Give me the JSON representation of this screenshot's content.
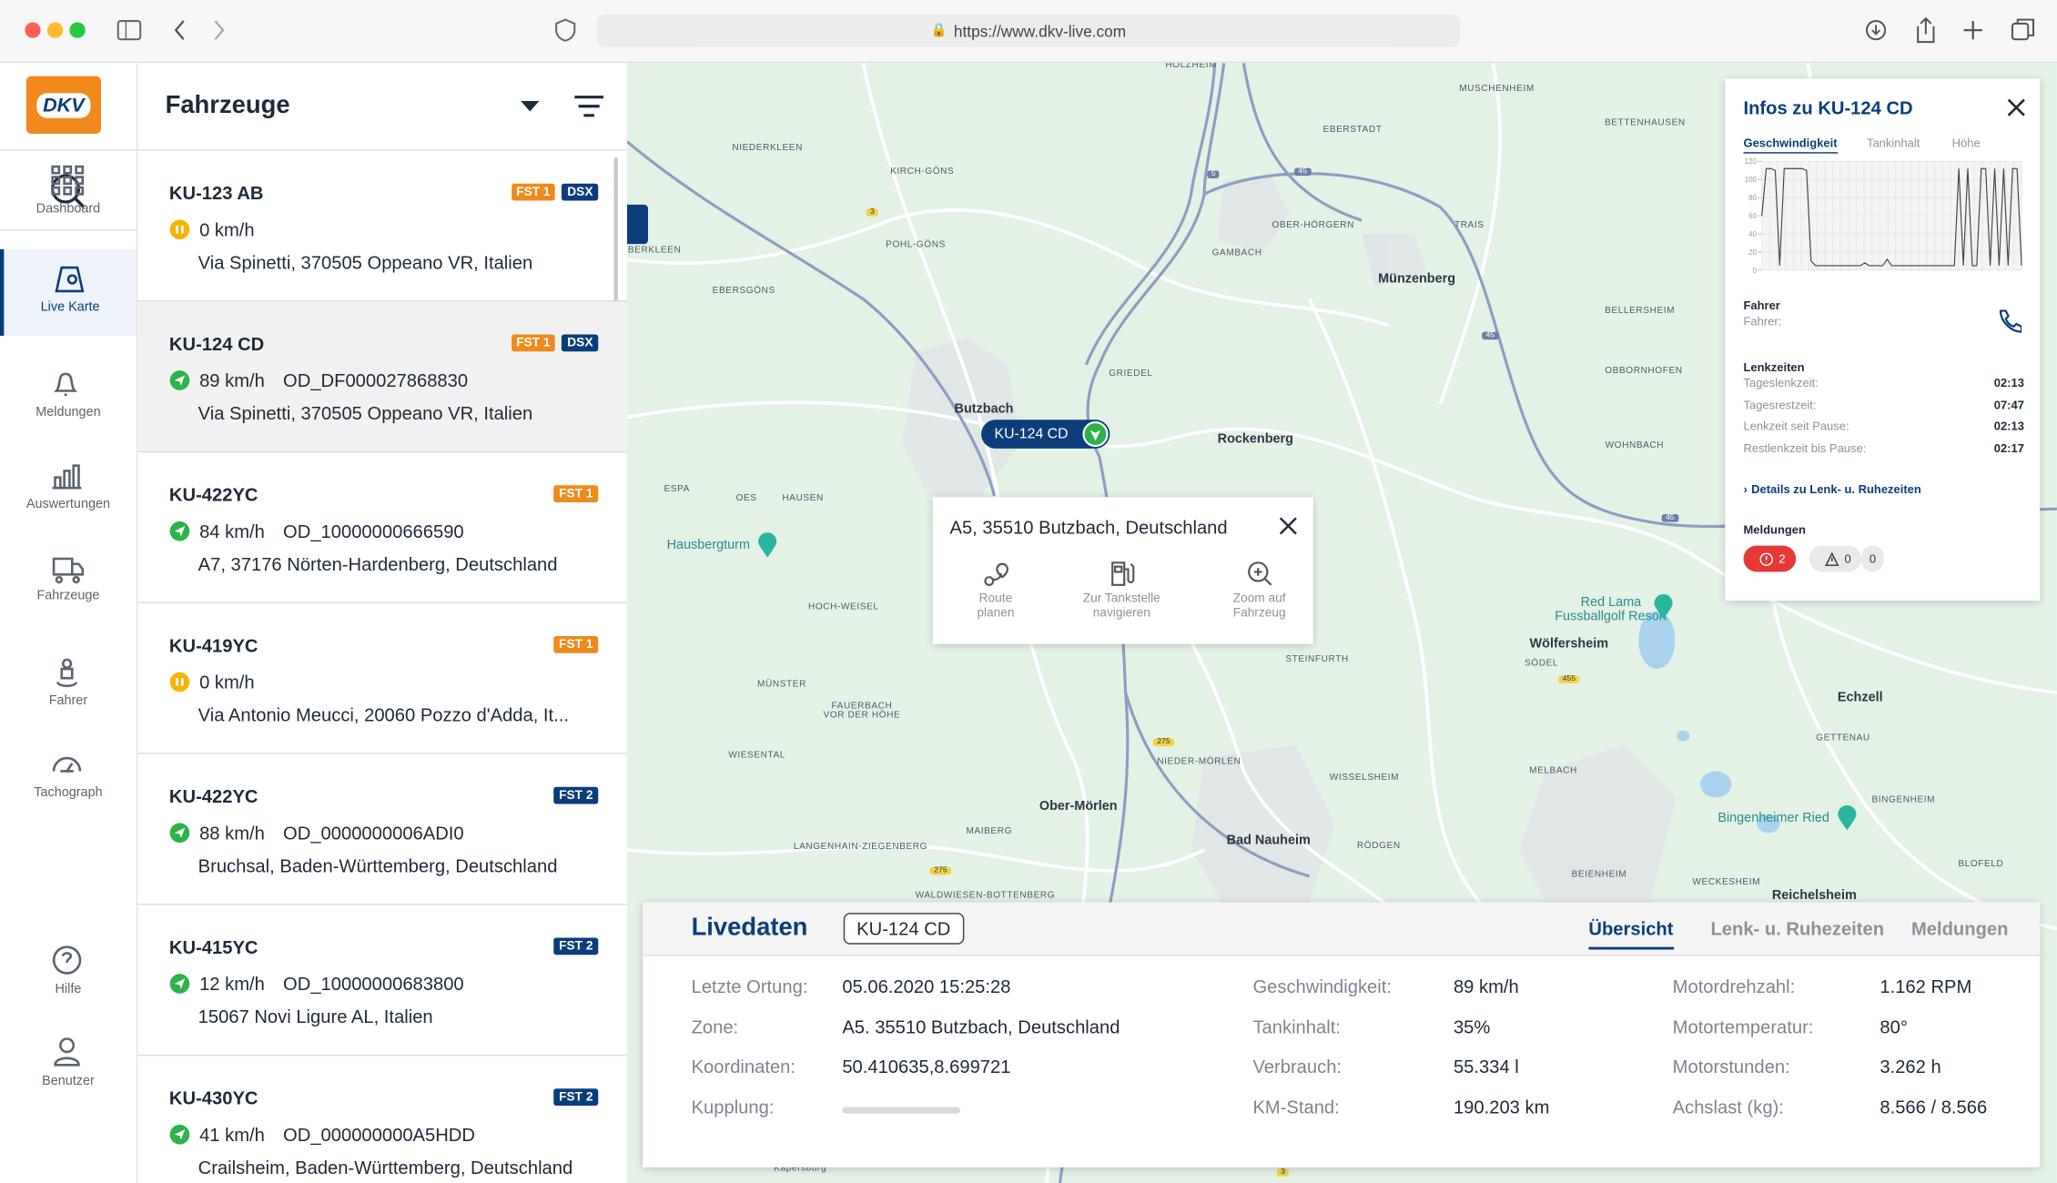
{
  "browser": {
    "url": "https://www.dkv-live.com"
  },
  "sidebar": {
    "logo": "DKV",
    "nav": [
      {
        "label": "Dashboard"
      },
      {
        "label": "Live Karte",
        "active": true
      },
      {
        "label": "Meldungen"
      },
      {
        "label": "Auswertungen"
      },
      {
        "label": "Fahrzeuge"
      },
      {
        "label": "Fahrer"
      },
      {
        "label": "Tachograph"
      },
      {
        "label": "Hilfe"
      },
      {
        "label": "Benutzer"
      }
    ]
  },
  "vehicle_list": {
    "title": "Fahrzeuge",
    "vehicles": [
      {
        "plate": "KU-123 AB",
        "badges": [
          {
            "text": "FST 1",
            "color": "#f08a1c"
          },
          {
            "text": "DSX",
            "color": "#0b3d7a"
          }
        ],
        "status": "paused",
        "speed": "0 km/h",
        "address": "Via Spinetti, 370505 Oppeano VR, Italien"
      },
      {
        "plate": "KU-124 CD",
        "badges": [
          {
            "text": "FST 1",
            "color": "#f08a1c"
          },
          {
            "text": "DSX",
            "color": "#0b3d7a"
          }
        ],
        "status": "moving",
        "speed": "89 km/h",
        "id": "OD_DF000027868830",
        "address": "Via Spinetti, 370505 Oppeano VR, Italien",
        "selected": true
      },
      {
        "plate": "KU-422YC",
        "badges": [
          {
            "text": "FST 1",
            "color": "#f08a1c"
          }
        ],
        "status": "moving",
        "speed": "84 km/h",
        "id": "OD_10000000666590",
        "address": "A7, 37176 Nörten-Hardenberg, Deutschland"
      },
      {
        "plate": "KU-419YC",
        "badges": [
          {
            "text": "FST 1",
            "color": "#f08a1c"
          }
        ],
        "status": "paused",
        "speed": "0 km/h",
        "address": "Via Antonio Meucci, 20060 Pozzo d'Adda, It..."
      },
      {
        "plate": "KU-422YC",
        "badges": [
          {
            "text": "FST 2",
            "color": "#0b3d7a"
          }
        ],
        "status": "moving",
        "speed": "88 km/h",
        "id": "OD_0000000006ADI0",
        "address": "Bruchsal, Baden-Württemberg, Deutschland"
      },
      {
        "plate": "KU-415YC",
        "badges": [
          {
            "text": "FST 2",
            "color": "#0b3d7a"
          }
        ],
        "status": "moving",
        "speed": "12 km/h",
        "id": "OD_10000000683800",
        "address": "15067 Novi Ligure AL, Italien"
      },
      {
        "plate": "KU-430YC",
        "badges": [
          {
            "text": "FST 2",
            "color": "#0b3d7a"
          }
        ],
        "status": "moving",
        "speed": "41 km/h",
        "id": "OD_000000000A5HDD",
        "address": "Crailsheim, Baden-Württemberg, Deutschland"
      }
    ]
  },
  "map": {
    "labels": [
      "HOLZHEIM",
      "NIEDERKLEEN",
      "KIRCH-GÖNS",
      "POHL-GÖNS",
      "OBERKLEEN",
      "EBERSGÖNS",
      "EBERSTADT",
      "MUSCHENHEIM",
      "BETTENHAUSEN",
      "GAMBACH",
      "OBER-HÖRGERN",
      "TRAIS",
      "Münzenberg",
      "BELLERSHEIM",
      "GRIEDEL",
      "Butzbach",
      "Rockenberg",
      "OBBORNHOFEN",
      "WOHNBACH",
      "ESPA",
      "OES",
      "HAUSEN",
      "Hausbergturm",
      "HOCH-WEISEL",
      "MÜNSTER",
      "FAUERBACH\nVOR DER HÖHE",
      "WIESENTAL",
      "LANGENHAIN-ZIEGENBERG",
      "MAIBERG",
      "Ober-Mörlen",
      "NIEDER-MÖRLEN",
      "Bad Nauheim",
      "STEINFURTH",
      "WISSELSHEIM",
      "RÖDGEN",
      "WALDWIESEN-BOTTENBERG",
      "Wölfersheim",
      "SÖDEL",
      "Red Lama\nFussballgolf Resort",
      "MELBACH",
      "Echzell",
      "GETTENAU",
      "BINGENHEIM",
      "Bingenheimer Ried",
      "BEIENHEIM",
      "WECKESHEIM",
      "BLOFELD",
      "Reichelsheim",
      "Kapersburg"
    ],
    "shields": [
      "5",
      "45",
      "45",
      "45",
      "45",
      "3",
      "275",
      "275",
      "455",
      "3"
    ],
    "marker": "KU-124 CD",
    "popup": {
      "address": "A5, 35510 Butzbach, Deutschland",
      "actions": [
        "Route\nplanen",
        "Zur Tankstelle\nnavigieren",
        "Zoom auf\nFahrzeug"
      ]
    }
  },
  "info_panel": {
    "title": "Infos zu KU-124 CD",
    "tabs": [
      {
        "label": "Geschwindigkeit",
        "active": true
      },
      {
        "label": "Tankinhalt"
      },
      {
        "label": "Höhe"
      }
    ],
    "speed_chart": {
      "ylim": [
        0,
        120
      ],
      "yticks": [
        0,
        20,
        40,
        60,
        80,
        100,
        120
      ],
      "values": [
        60,
        112,
        112,
        110,
        5,
        112,
        112,
        112,
        112,
        112,
        110,
        10,
        5,
        5,
        5,
        5,
        5,
        5,
        5,
        5,
        5,
        5,
        5,
        8,
        5,
        5,
        5,
        5,
        12,
        5,
        5,
        5,
        5,
        5,
        5,
        5,
        5,
        5,
        5,
        5,
        5,
        5,
        5,
        5,
        112,
        5,
        112,
        5,
        5,
        112,
        112,
        5,
        112,
        5,
        112,
        5,
        112,
        112,
        5
      ]
    },
    "driver": {
      "heading": "Fahrer",
      "label": "Fahrer:"
    },
    "driving_times": {
      "heading": "Lenkzeiten",
      "rows": [
        [
          "Tageslenkzeit:",
          "02:13"
        ],
        [
          "Tagesrestzeit:",
          "07:47"
        ],
        [
          "Lenkzeit seit Pause:",
          "02:13"
        ],
        [
          "Restlenkzeit bis Pause:",
          "02:17"
        ]
      ],
      "link": "Details zu Lenk- u. Ruhezeiten"
    },
    "messages": {
      "heading": "Meldungen",
      "counts": [
        2,
        0,
        0
      ]
    }
  },
  "livedaten": {
    "title": "Livedaten",
    "plate": "KU-124 CD",
    "tabs": [
      {
        "label": "Übersicht",
        "active": true
      },
      {
        "label": "Lenk- u. Ruhezeiten"
      },
      {
        "label": "Meldungen"
      }
    ],
    "columns": [
      [
        [
          "Letzte Ortung:",
          "05.06.2020 15:25:28"
        ],
        [
          "Zone:",
          "A5. 35510 Butzbach, Deutschland"
        ],
        [
          "Koordinaten:",
          "50.410635,8.699721"
        ],
        [
          "Kupplung:"
        ]
      ],
      [
        [
          "Geschwindigkeit:",
          "89 km/h"
        ],
        [
          "Tankinhalt:",
          "35%"
        ],
        [
          "Verbrauch:",
          "55.334 l"
        ],
        [
          "KM-Stand:",
          "190.203 km"
        ]
      ],
      [
        [
          "Motordrehzahl:",
          "1.162 RPM"
        ],
        [
          "Motortemperatur:",
          "80°"
        ],
        [
          "Motorstunden:",
          "3.262 h"
        ],
        [
          "Achslast (kg):",
          "8.566 / 8.566"
        ]
      ]
    ]
  }
}
